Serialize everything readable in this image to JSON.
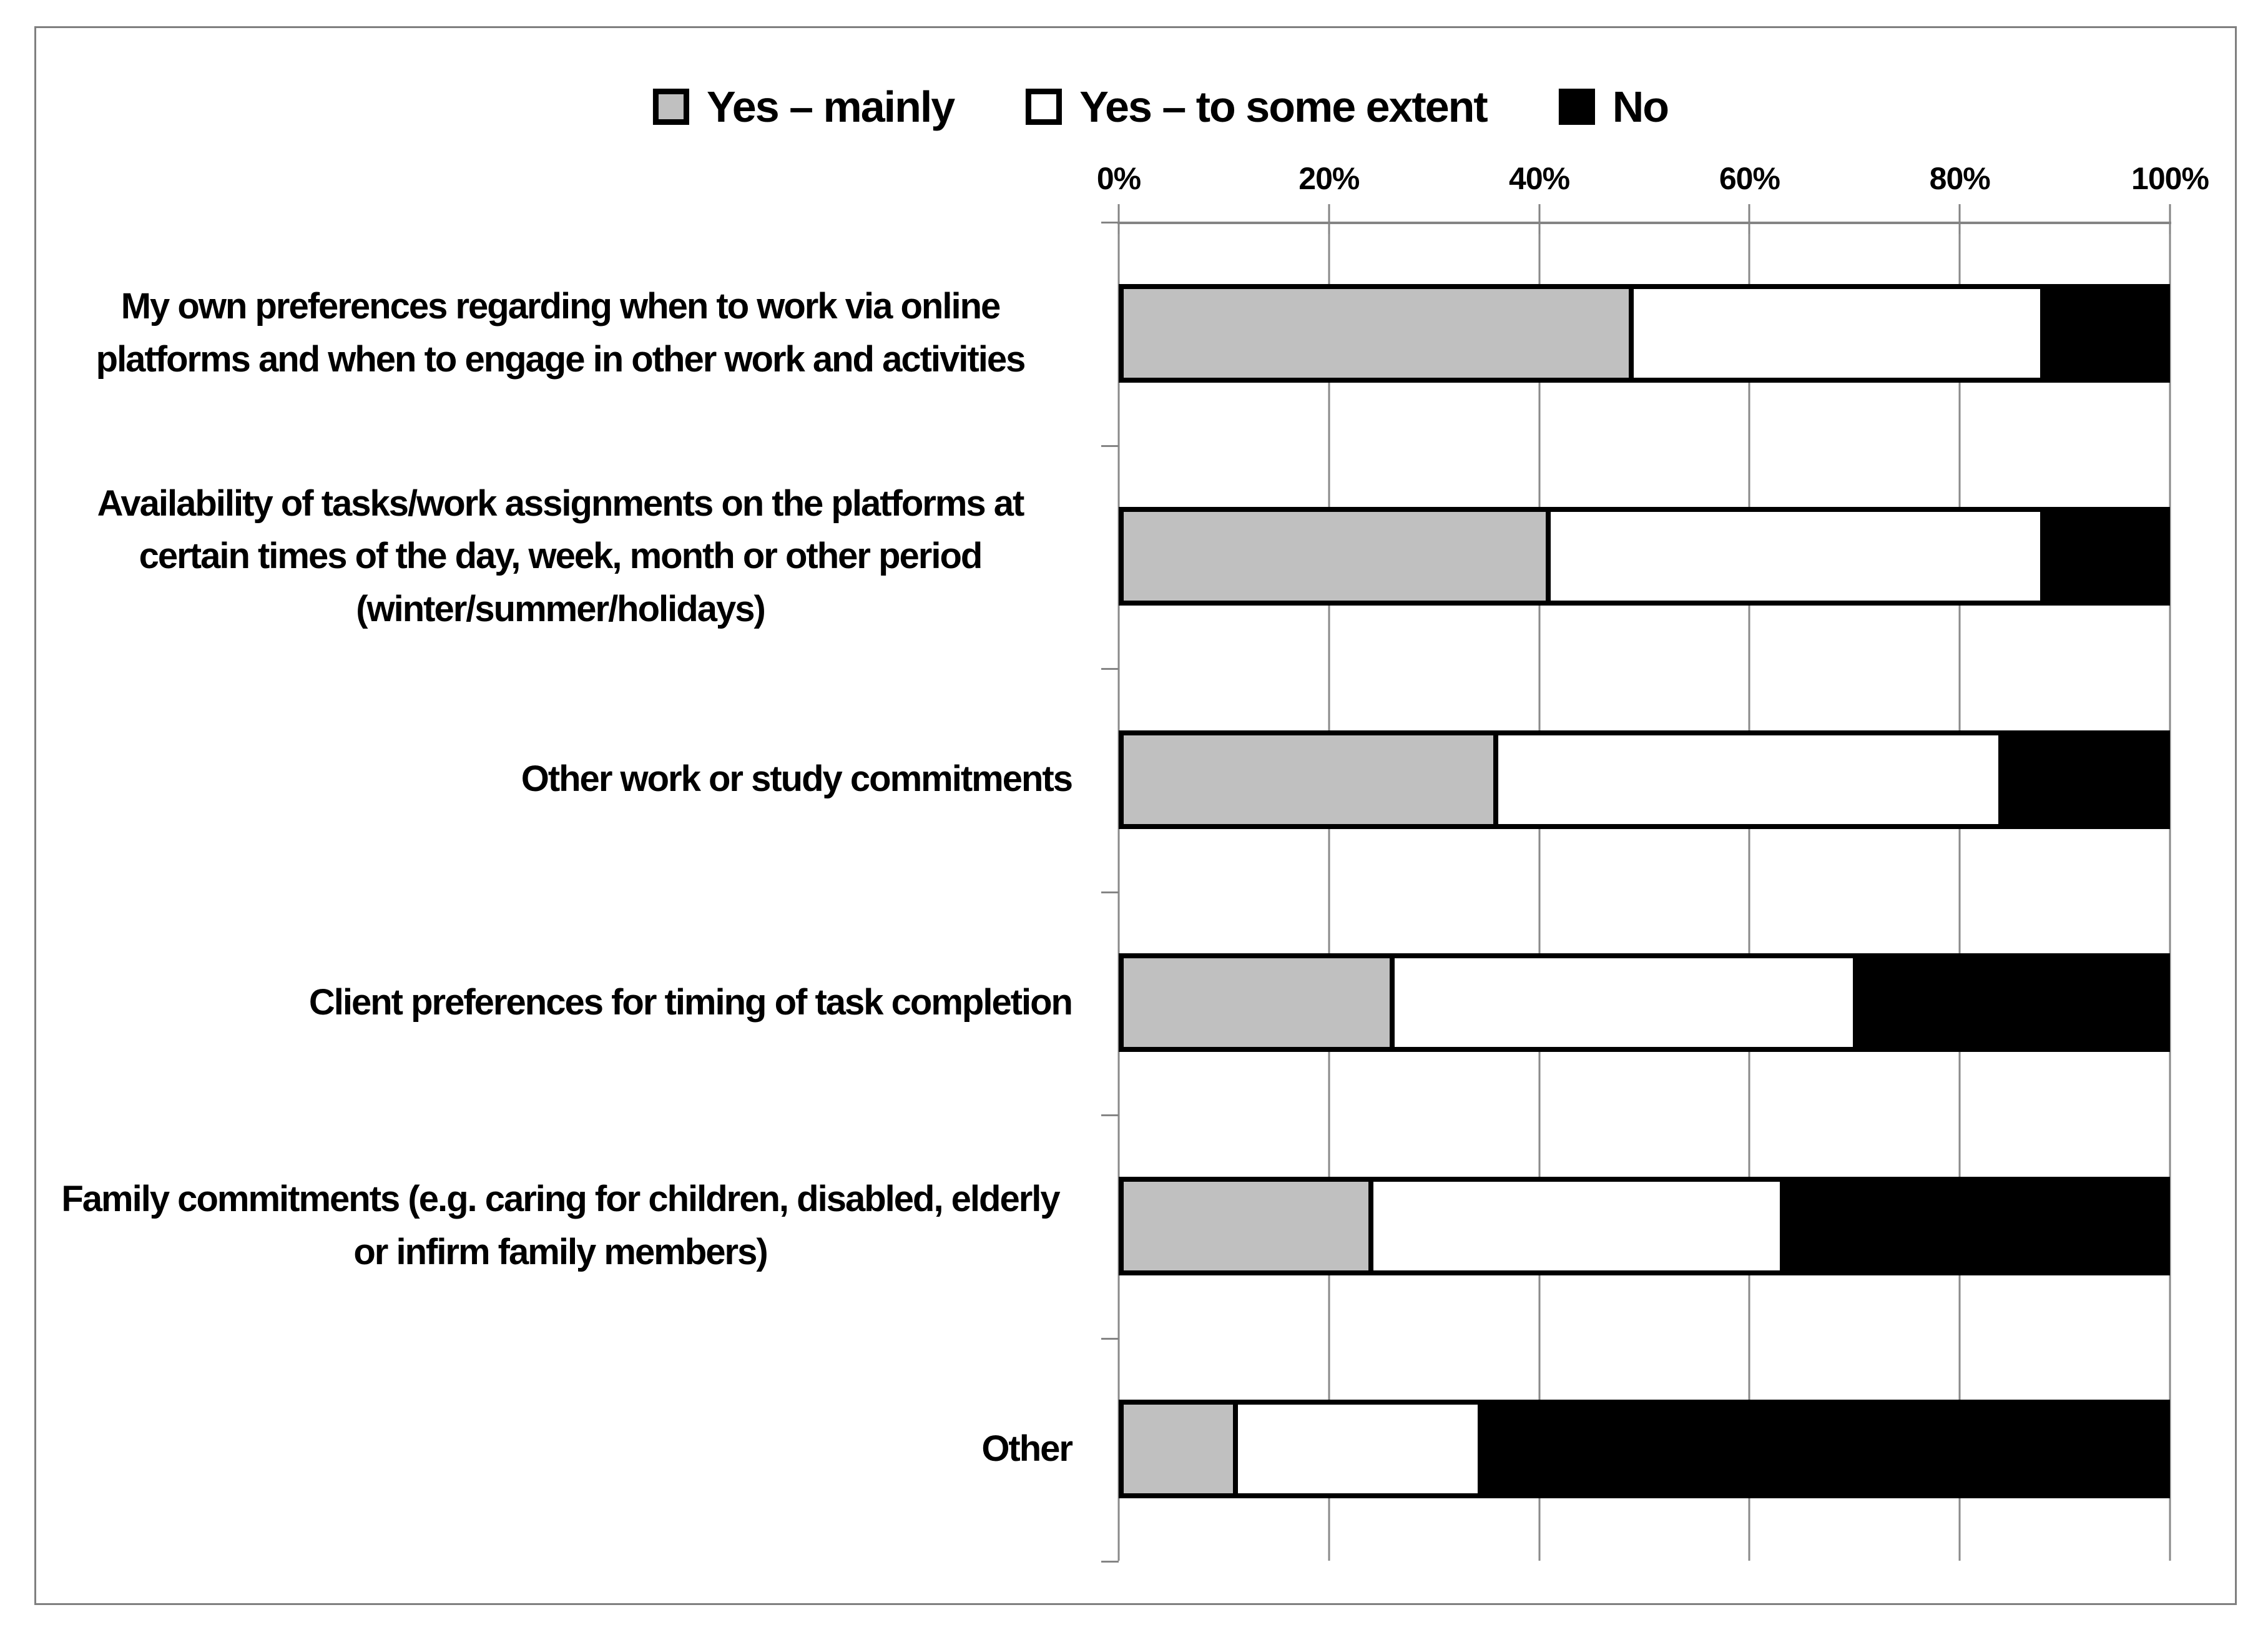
{
  "figure": {
    "background": "#ffffff",
    "frame_border_color": "#7f7f7f",
    "gridline_color": "#8a8a8a"
  },
  "legend": {
    "position": "top-center",
    "items": [
      {
        "label": "Yes – mainly",
        "color": "#c0c0c0"
      },
      {
        "label": "Yes – to some extent",
        "color": "#ffffff"
      },
      {
        "label": "No",
        "color": "#000000"
      }
    ]
  },
  "chart_data": {
    "type": "bar",
    "orientation": "horizontal-stacked",
    "title": "",
    "xlabel": "",
    "ylabel": "",
    "x_axis": {
      "position": "top",
      "min": 0,
      "max": 100,
      "tick_labels": [
        "0%",
        "20%",
        "40%",
        "60%",
        "80%",
        "100%"
      ],
      "tick_values": [
        0,
        20,
        40,
        60,
        80,
        100
      ]
    },
    "grid": "vertical gridlines every 20%",
    "legend_position": "top",
    "categories": [
      "My own preferences regarding when to work via online platforms and when to engage in other work and activities",
      "Availability of tasks/work assignments on the platforms at certain times of the day, week, month or other period (winter/summer/holidays)",
      "Other work or study commitments",
      "Client preferences for timing of task completion",
      "Family commitments (e.g. caring for children, disabled, elderly or infirm family members)",
      "Other"
    ],
    "series": [
      {
        "name": "Yes – mainly",
        "color": "#c0c0c0",
        "values": [
          49,
          41,
          36,
          26,
          24,
          11
        ]
      },
      {
        "name": "Yes – to some extent",
        "color": "#ffffff",
        "values": [
          39,
          47,
          48,
          44,
          39,
          23
        ]
      },
      {
        "name": "No",
        "color": "#000000",
        "values": [
          12,
          12,
          16,
          30,
          37,
          66
        ]
      }
    ]
  }
}
